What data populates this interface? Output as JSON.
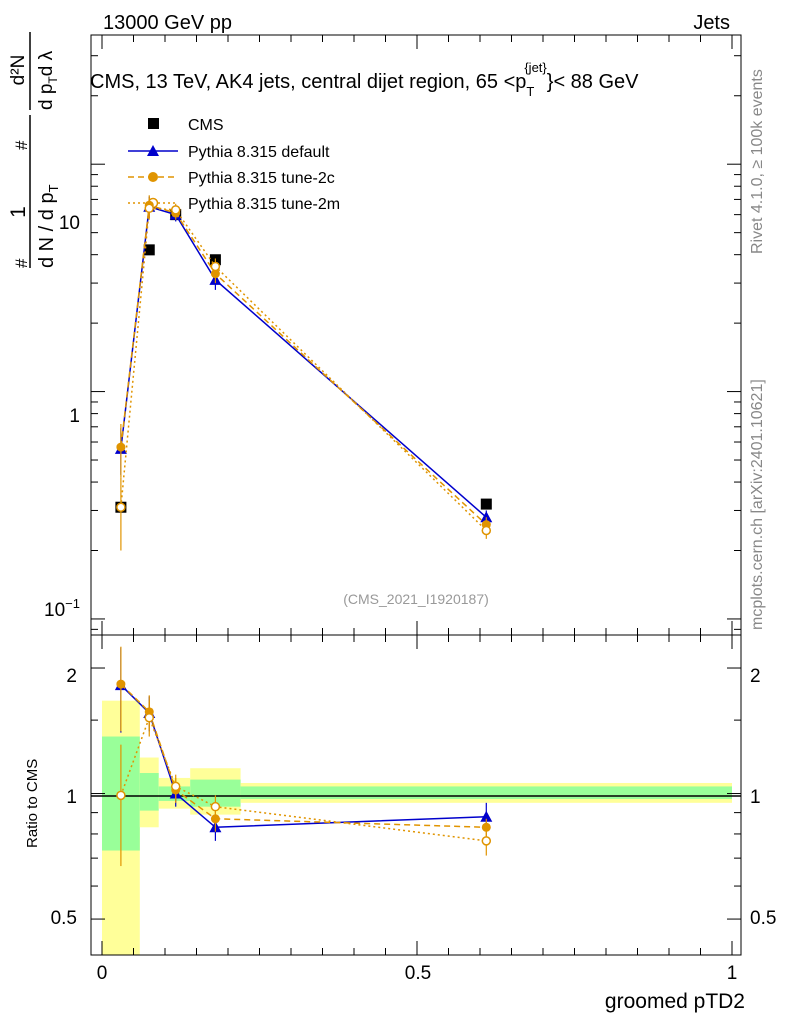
{
  "header": {
    "energy": "13000 GeV pp",
    "category": "Jets",
    "title": "CMS, 13 TeV, AK4 jets, central dijet region, 65 <p",
    "title_sup": "{jet}",
    "title_sub": "T",
    "title_end": "}< 88 GeV"
  },
  "side_labels": {
    "rivet": "Rivet 4.1.0, ≥ 100k events",
    "mcplots": "mcplots.cern.ch [arXiv:2401.10621]"
  },
  "y_axis_main": {
    "hash1": "#",
    "hash2": "#",
    "one": "1",
    "dN": "d N / d p",
    "dN_sub": "T",
    "d2N": "d²N",
    "dpT": "d p",
    "dpT_sub": "T",
    "dlambda": "d λ"
  },
  "chart_data": [
    {
      "type": "line",
      "panel": "main",
      "yscale": "log",
      "xlim": [
        -0.04,
        1.02
      ],
      "ylim": [
        0.085,
        37
      ],
      "ytick_labels": {
        "major": [
          "10",
          "1"
        ],
        "tenth_base": "10",
        "tenth_exp": "−1"
      },
      "analysis_id": "(CMS_2021_I1920187)",
      "legend_position": "top-left",
      "legend": [
        "CMS",
        "Pythia 8.315 default",
        "Pythia 8.315 tune-2c",
        "Pythia 8.315 tune-2m"
      ],
      "series": [
        {
          "name": "CMS",
          "color": "#000000",
          "x": [
            0.03,
            0.075,
            0.117,
            0.18,
            0.61
          ],
          "y": [
            0.31,
            4.2,
            6.0,
            3.8,
            0.32
          ]
        },
        {
          "name": "Pythia 8.315 default",
          "color": "#0000cc",
          "x": [
            0.03,
            0.075,
            0.117,
            0.18,
            0.61
          ],
          "y": [
            0.56,
            6.5,
            6.0,
            3.1,
            0.28
          ],
          "err": [
            0.13,
            0.7,
            0.4,
            0.3,
            0.02
          ]
        },
        {
          "name": "Pythia 8.315 tune-2c",
          "color": "#e09400",
          "x": [
            0.03,
            0.075,
            0.117,
            0.18,
            0.61
          ],
          "y": [
            0.57,
            6.6,
            6.1,
            3.3,
            0.26
          ],
          "err": [
            0.15,
            0.7,
            0.4,
            0.3,
            0.02
          ]
        },
        {
          "name": "Pythia 8.315 tune-2m",
          "color": "#e09400",
          "x": [
            0.03,
            0.075,
            0.117,
            0.18,
            0.61
          ],
          "y": [
            0.31,
            6.4,
            6.3,
            3.55,
            0.245
          ],
          "err": [
            0.11,
            0.7,
            0.4,
            0.3,
            0.02
          ]
        }
      ]
    },
    {
      "type": "line",
      "panel": "ratio",
      "ylabel": "Ratio to CMS",
      "yscale": "log",
      "ylim": [
        0.41,
        2.4
      ],
      "xlabel": "groomed pTD2",
      "xticks": [
        0,
        0.5,
        1
      ],
      "xtick_labels": [
        "0",
        "0.5",
        "1"
      ],
      "yticks": [
        0.5,
        1,
        2
      ],
      "ytick_labels": [
        "0.5",
        "1",
        "2"
      ],
      "bands": {
        "bins": [
          0,
          0.06,
          0.09,
          0.14,
          0.22,
          1.0
        ],
        "yellow_lo": [
          0.28,
          0.83,
          0.92,
          0.89,
          0.95
        ],
        "yellow_hi": [
          1.67,
          1.22,
          1.09,
          1.15,
          1.06
        ],
        "green_lo": [
          0.73,
          0.91,
          0.96,
          0.93,
          0.97
        ],
        "green_hi": [
          1.37,
          1.12,
          1.04,
          1.08,
          1.04
        ]
      },
      "series": [
        {
          "name": "Pythia 8.315 default",
          "color": "#0000cc",
          "x": [
            0.03,
            0.075,
            0.117,
            0.18,
            0.61
          ],
          "y": [
            1.82,
            1.56,
            1.0,
            0.83,
            0.88
          ],
          "err": [
            0.42,
            0.15,
            0.07,
            0.06,
            0.07
          ]
        },
        {
          "name": "Pythia 8.315 tune-2c",
          "color": "#e09400",
          "x": [
            0.03,
            0.075,
            0.117,
            0.18,
            0.61
          ],
          "y": [
            1.83,
            1.57,
            1.02,
            0.87,
            0.83
          ],
          "err": [
            0.42,
            0.15,
            0.07,
            0.06,
            0.04
          ]
        },
        {
          "name": "Pythia 8.315 tune-2m",
          "color": "#e09400",
          "x": [
            0.03,
            0.075,
            0.117,
            0.18,
            0.61
          ],
          "y": [
            0.99,
            1.52,
            1.04,
            0.93,
            0.77
          ],
          "err": [
            0.32,
            0.15,
            0.07,
            0.06,
            0.06
          ]
        }
      ]
    }
  ]
}
